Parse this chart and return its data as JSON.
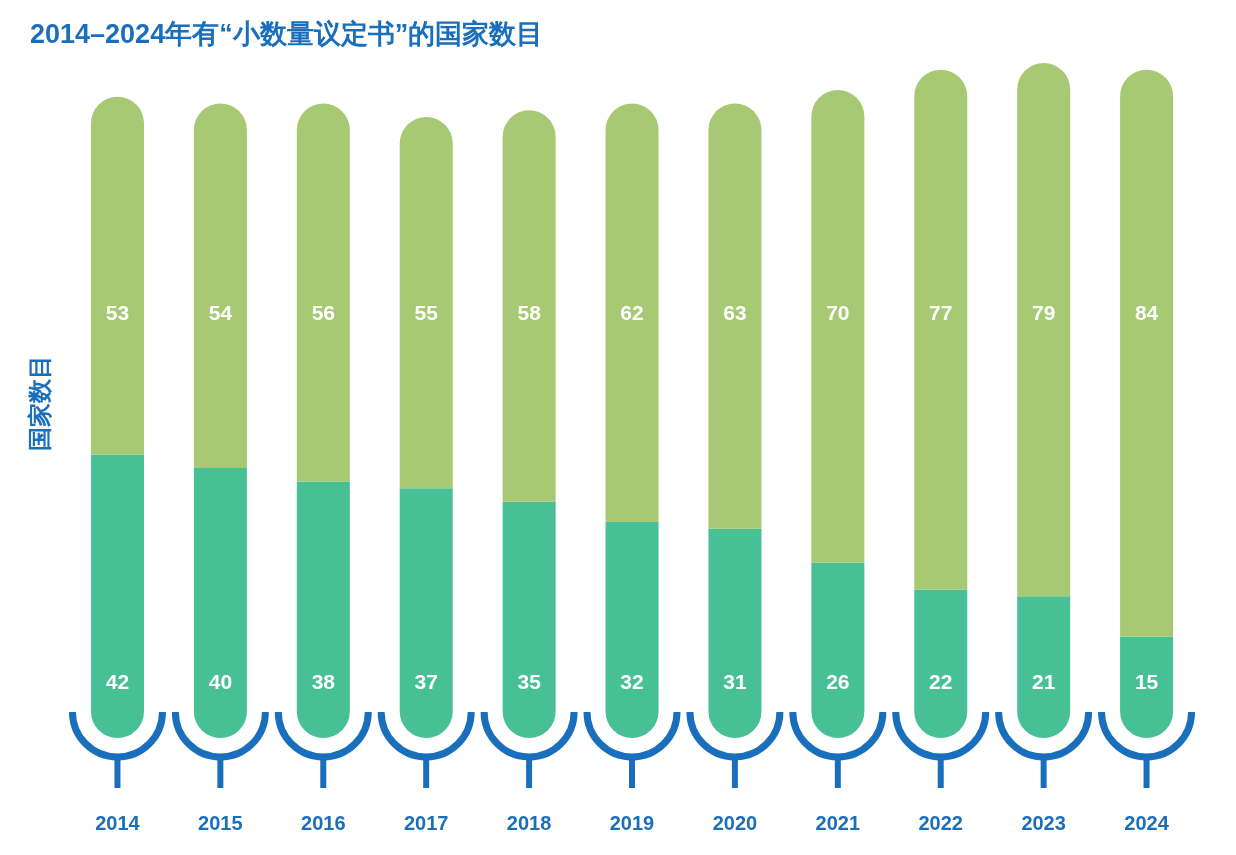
{
  "chart_data": {
    "type": "bar",
    "title": "2014–2024年有“小数量议定书”的国家数目",
    "ylabel": "国家数目",
    "categories": [
      "2014",
      "2015",
      "2016",
      "2017",
      "2018",
      "2019",
      "2020",
      "2021",
      "2022",
      "2023",
      "2024"
    ],
    "stacked": true,
    "data_labels": true,
    "tick_labels": "x",
    "legend": false,
    "grid": false,
    "series": [
      {
        "color": "#47c096",
        "values": [
          42,
          40,
          38,
          37,
          35,
          32,
          31,
          26,
          22,
          21,
          15
        ]
      },
      {
        "color": "#a8c973",
        "values": [
          53,
          54,
          56,
          55,
          58,
          62,
          63,
          70,
          77,
          79,
          84
        ]
      }
    ]
  }
}
